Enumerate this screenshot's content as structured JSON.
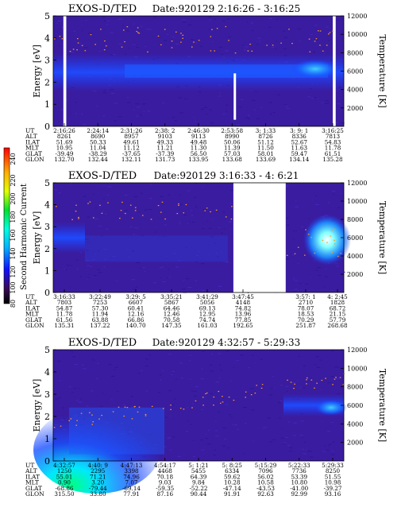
{
  "figure": {
    "colorbar": {
      "label": "Second Harmonic Current",
      "ticks": [
        "80",
        "100",
        "120",
        "140",
        "160",
        "180",
        "200",
        "220",
        "240"
      ]
    }
  },
  "chart_data": [
    {
      "type": "heatmap",
      "title": "EXOS-D/TED",
      "date": "Date:920129  2:16:26 - 3:16:25",
      "ylabel": "Energy [eV]",
      "y2label": "Temperature [K]",
      "ylim": [
        0,
        5
      ],
      "y2lim": [
        0,
        12000
      ],
      "yticks": [
        "0",
        "1",
        "2",
        "3",
        "4",
        "5"
      ],
      "y2ticks": [
        "2000",
        "4000",
        "6000",
        "8000",
        "10000",
        "12000"
      ],
      "gaps": [
        [
          0.035,
          0.045
        ],
        [
          0.962,
          0.972
        ]
      ],
      "spike": {
        "x": 0.625,
        "y": [
          0.3,
          2.4
        ]
      },
      "time_columns": [
        "2:16:26",
        "2:24:14",
        "2:31:26",
        "2:38: 2",
        "2:46:30",
        "2:53:58",
        "3: 1:33",
        "3: 9: 1",
        "3:16:25"
      ],
      "rows": [
        {
          "label": "UT",
          "values": [
            "2:16:26",
            "2:24:14",
            "2:31:26",
            "2:38: 2",
            "2:46:30",
            "2:53:58",
            "3: 1:33",
            "3: 9: 1",
            "3:16:25"
          ]
        },
        {
          "label": "ALT",
          "values": [
            "8261",
            "8690",
            "8957",
            "9103",
            "9113",
            "8990",
            "8726",
            "8336",
            "7813"
          ]
        },
        {
          "label": "ILAT",
          "values": [
            "51.69",
            "50.33",
            "49.61",
            "49.33",
            "49.48",
            "50.06",
            "51.12",
            "52.67",
            "54.83"
          ]
        },
        {
          "label": "MLT",
          "values": [
            "10.95",
            "11.04",
            "11.12",
            "11.21",
            "11.30",
            "11.39",
            "11.50",
            "11.63",
            "11.78"
          ]
        },
        {
          "label": "GLAT",
          "values": [
            "-39.49",
            "-38.29",
            "-37.65",
            "-37.39",
            "56.50",
            "57.03",
            "58.01",
            "59.47",
            "61.51"
          ]
        },
        {
          "label": "GLON",
          "values": [
            "132.70",
            "132.44",
            "132.11",
            "131.73",
            "133.95",
            "133.68",
            "133.69",
            "134.14",
            "135.28"
          ]
        }
      ]
    },
    {
      "type": "heatmap",
      "title": "EXOS-D/TED",
      "date": "Date:920129  3:16:33 - 4: 6:21",
      "ylabel": "Energy [eV]",
      "y2label": "Temperature [K]",
      "ylim": [
        0,
        5
      ],
      "y2lim": [
        0,
        12000
      ],
      "yticks": [
        "0",
        "1",
        "2",
        "3",
        "4",
        "5"
      ],
      "y2ticks": [
        "2000",
        "4000",
        "6000",
        "8000",
        "10000",
        "12000"
      ],
      "gaps": [
        [
          0.62,
          0.8
        ]
      ],
      "time_columns": [
        "3:16:33",
        "3:22:49",
        "3:29: 5",
        "3:35:21",
        "3:41:29",
        "3:47:45",
        "3:57: 1",
        "4: 2:45"
      ],
      "rows": [
        {
          "label": "UT",
          "values": [
            "3:16:33",
            "3:22:49",
            "3:29: 5",
            "3:35:21",
            "3:41:29",
            "3:47:45",
            "3:57: 1",
            "4: 2:45"
          ]
        },
        {
          "label": "ALT",
          "values": [
            "7803",
            "7253",
            "6607",
            "5867",
            "5056",
            "4148",
            "2710",
            "1828"
          ]
        },
        {
          "label": "ILAT",
          "values": [
            "54.87",
            "57.30",
            "60.41",
            "64.46",
            "69.13",
            "74.82",
            "78.07",
            "68.72"
          ]
        },
        {
          "label": "MLT",
          "values": [
            "11.78",
            "11.94",
            "12.16",
            "12.46",
            "12.95",
            "13.96",
            "18.53",
            "21.15"
          ]
        },
        {
          "label": "GLAT",
          "values": [
            "61.56",
            "63.88",
            "66.86",
            "70.58",
            "74.74",
            "77.85",
            "70.29",
            "57.79"
          ]
        },
        {
          "label": "GLON",
          "values": [
            "135.31",
            "137.22",
            "140.70",
            "147.35",
            "161.03",
            "192.65",
            "251.87",
            "268.68"
          ]
        }
      ]
    },
    {
      "type": "heatmap",
      "title": "EXOS-D/TED",
      "date": "Date:920129  4:32:57 - 5:29:33",
      "ylabel": "Energy [eV]",
      "y2label": "Temperature [K]",
      "ylim": [
        0,
        5
      ],
      "y2lim": [
        0,
        12000
      ],
      "yticks": [
        "0",
        "1",
        "2",
        "3",
        "4",
        "5"
      ],
      "y2ticks": [
        "2000",
        "4000",
        "6000",
        "8000",
        "10000",
        "12000"
      ],
      "gaps": [],
      "time_columns": [
        "4:32:57",
        "4:40: 9",
        "4:47:13",
        "4:54:17",
        "5: 1:21",
        "5: 8:25",
        "5:15:29",
        "5:22:33",
        "5:29:33"
      ],
      "rows": [
        {
          "label": "UT",
          "values": [
            "4:32:57",
            "4:40: 9",
            "4:47:13",
            "4:54:17",
            "5: 1:21",
            "5: 8:25",
            "5:15:29",
            "5:22:33",
            "5:29:33"
          ]
        },
        {
          "label": "ALT",
          "values": [
            "1250",
            "2295",
            "3398",
            "4468",
            "5455",
            "6334",
            "7096",
            "7736",
            "8250"
          ]
        },
        {
          "label": "ILAT",
          "values": [
            "55.01",
            "71.21",
            "74.96",
            "70.18",
            "64.39",
            "59.62",
            "56.02",
            "53.39",
            "51.55"
          ]
        },
        {
          "label": "MLT",
          "values": [
            "0.90",
            "3.20",
            "7.07",
            "9.03",
            "9.84",
            "10.28",
            "10.58",
            "10.80",
            "10.98"
          ]
        },
        {
          "label": "GLAT",
          "values": [
            "-68.86",
            "-79.44",
            "-69.14",
            "-59.35",
            "-52.22",
            "-47.14",
            "-43.53",
            "-41.00",
            "-39.27"
          ]
        },
        {
          "label": "GLON",
          "values": [
            "315.50",
            "33.80",
            "77.91",
            "87.16",
            "90.44",
            "91.91",
            "92.63",
            "92.99",
            "93.16"
          ]
        }
      ]
    }
  ]
}
